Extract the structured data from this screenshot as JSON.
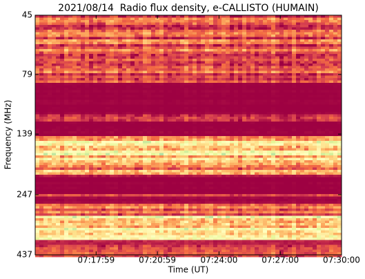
{
  "chart_data": {
    "type": "spectrogram",
    "title": "2021/08/14  Radio flux density, e-CALLISTO (HUMAIN)",
    "x_label": "Time (UT)",
    "y_label": "Frequency (MHz)",
    "xlim": [
      "07:15:00",
      "07:30:00"
    ],
    "xticks": [
      "07:17:59",
      "07:20:59",
      "07:24:00",
      "07:27:00",
      "07:30:00"
    ],
    "ylim": [
      45,
      437
    ],
    "y_log": true,
    "y_inverted": true,
    "yticks": [
      45,
      79,
      139,
      247,
      437
    ],
    "colormap": "Spectral"
  }
}
